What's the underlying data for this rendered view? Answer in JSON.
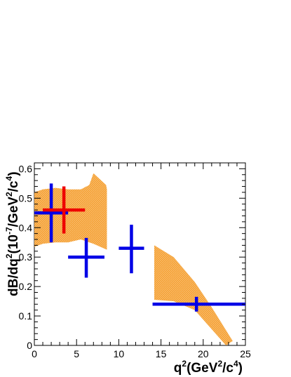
{
  "chart_data": {
    "type": "scatter",
    "xlim": [
      0,
      25
    ],
    "ylim": [
      0,
      0.62
    ],
    "x_ticks": [
      "0",
      "5",
      "10",
      "15",
      "20",
      "25"
    ],
    "y_ticks": [
      "0",
      "0.1",
      "0.2",
      "0.3",
      "0.4",
      "0.5",
      "0.6"
    ],
    "xlabel_parts": {
      "base": "q",
      "sup1": "2",
      "mid": "(GeV",
      "sup2": "2",
      "slash": "/c",
      "sup3": "4",
      "end": ")"
    },
    "ylabel_parts": {
      "base": "dB/dq",
      "sup1": "2",
      "mid": "(10",
      "sup2": "-7",
      "slash": "/GeV",
      "sup3": "2",
      "slash2": "/c",
      "sup4": "4",
      "end": ")"
    },
    "colors": {
      "band": "#f5a033",
      "blue": "#0000e6",
      "red": "#ee0000"
    },
    "bands": [
      {
        "upper": [
          [
            0,
            0.52
          ],
          [
            1,
            0.53
          ],
          [
            2.5,
            0.535
          ],
          [
            4,
            0.53
          ],
          [
            5.5,
            0.53
          ],
          [
            6.5,
            0.545
          ],
          [
            7,
            0.585
          ],
          [
            8.5,
            0.545
          ],
          [
            8.6,
            0.53
          ]
        ],
        "lower": [
          [
            8.6,
            0.325
          ],
          [
            7,
            0.345
          ],
          [
            5.5,
            0.36
          ],
          [
            4,
            0.35
          ],
          [
            2.5,
            0.35
          ],
          [
            1,
            0.345
          ],
          [
            0,
            0.335
          ]
        ]
      },
      {
        "upper": [
          [
            14.2,
            0.34
          ],
          [
            16.5,
            0.3
          ],
          [
            19,
            0.215
          ],
          [
            21,
            0.13
          ],
          [
            23.5,
            0.015
          ]
        ],
        "lower": [
          [
            22.7,
            0
          ],
          [
            21,
            0.055
          ],
          [
            19,
            0.12
          ],
          [
            16.5,
            0.15
          ],
          [
            14.2,
            0.155
          ]
        ]
      }
    ],
    "series": [
      {
        "color": "blue",
        "points": [
          {
            "x": 2,
            "xerr": [
              2,
              2
            ],
            "y": 0.45,
            "yerr": [
              0.1,
              0.1
            ]
          },
          {
            "x": 6.15,
            "xerr": [
              2.15,
              2.15
            ],
            "y": 0.3,
            "yerr": [
              0.07,
              0.065
            ]
          },
          {
            "x": 11.5,
            "xerr": [
              1.5,
              1.5
            ],
            "y": 0.33,
            "yerr": [
              0.085,
              0.08
            ]
          },
          {
            "x": 19.2,
            "xerr": [
              5.2,
              5.8
            ],
            "y": 0.14,
            "yerr": [
              0.025,
              0.025
            ]
          }
        ]
      },
      {
        "color": "red",
        "points": [
          {
            "x": 3.5,
            "xerr": [
              2.5,
              2.5
            ],
            "y": 0.46,
            "yerr": [
              0.08,
              0.08
            ]
          }
        ]
      }
    ]
  }
}
